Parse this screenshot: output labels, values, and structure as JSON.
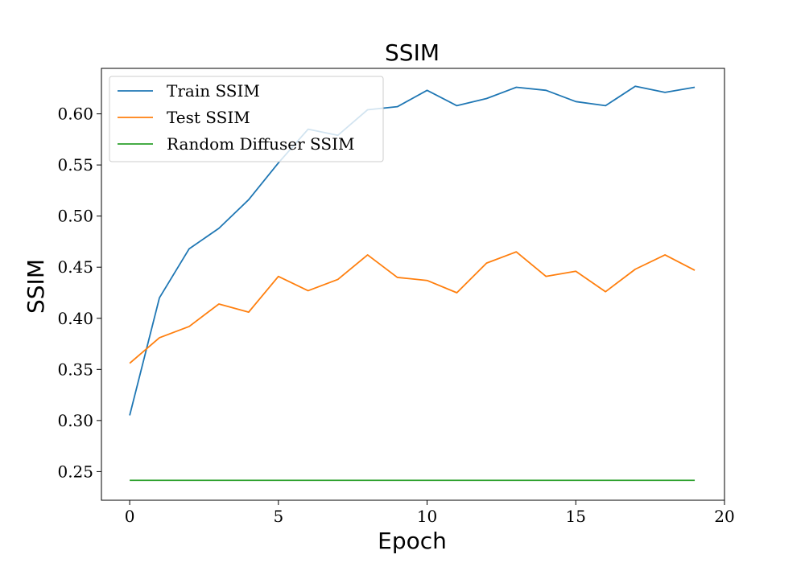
{
  "chart_data": {
    "type": "line",
    "title": "SSIM",
    "xlabel": "Epoch",
    "ylabel": "SSIM",
    "xlim": [
      -0.95,
      20
    ],
    "ylim": [
      0.222,
      0.6445
    ],
    "x_ticks": [
      0,
      5,
      10,
      15,
      20
    ],
    "x_tick_labels": [
      "0",
      "5",
      "10",
      "15",
      "20"
    ],
    "y_ticks": [
      0.25,
      0.3,
      0.35,
      0.4,
      0.45,
      0.5,
      0.55,
      0.6
    ],
    "y_tick_labels": [
      "0.25",
      "0.30",
      "0.35",
      "0.40",
      "0.45",
      "0.50",
      "0.55",
      "0.60"
    ],
    "grid": false,
    "legend_position": "top-left",
    "x": [
      0,
      1,
      2,
      3,
      4,
      5,
      6,
      7,
      8,
      9,
      10,
      11,
      12,
      13,
      14,
      15,
      16,
      17,
      18,
      19
    ],
    "series": [
      {
        "name": "Train SSIM",
        "color": "#1f77b4",
        "values": [
          0.305,
          0.42,
          0.468,
          0.488,
          0.516,
          0.552,
          0.585,
          0.579,
          0.604,
          0.607,
          0.623,
          0.608,
          0.615,
          0.626,
          0.623,
          0.612,
          0.608,
          0.627,
          0.621,
          0.626
        ]
      },
      {
        "name": "Test SSIM",
        "color": "#ff7f0e",
        "values": [
          0.356,
          0.381,
          0.392,
          0.414,
          0.406,
          0.441,
          0.427,
          0.438,
          0.462,
          0.44,
          0.437,
          0.425,
          0.454,
          0.465,
          0.441,
          0.446,
          0.426,
          0.448,
          0.462,
          0.447
        ]
      },
      {
        "name": "Random Diffuser SSIM",
        "color": "#2ca02c",
        "values": [
          0.2415,
          0.2415,
          0.2415,
          0.2415,
          0.2415,
          0.2415,
          0.2415,
          0.2415,
          0.2415,
          0.2415,
          0.2415,
          0.2415,
          0.2415,
          0.2415,
          0.2415,
          0.2415,
          0.2415,
          0.2415,
          0.2415,
          0.2415
        ]
      }
    ]
  }
}
